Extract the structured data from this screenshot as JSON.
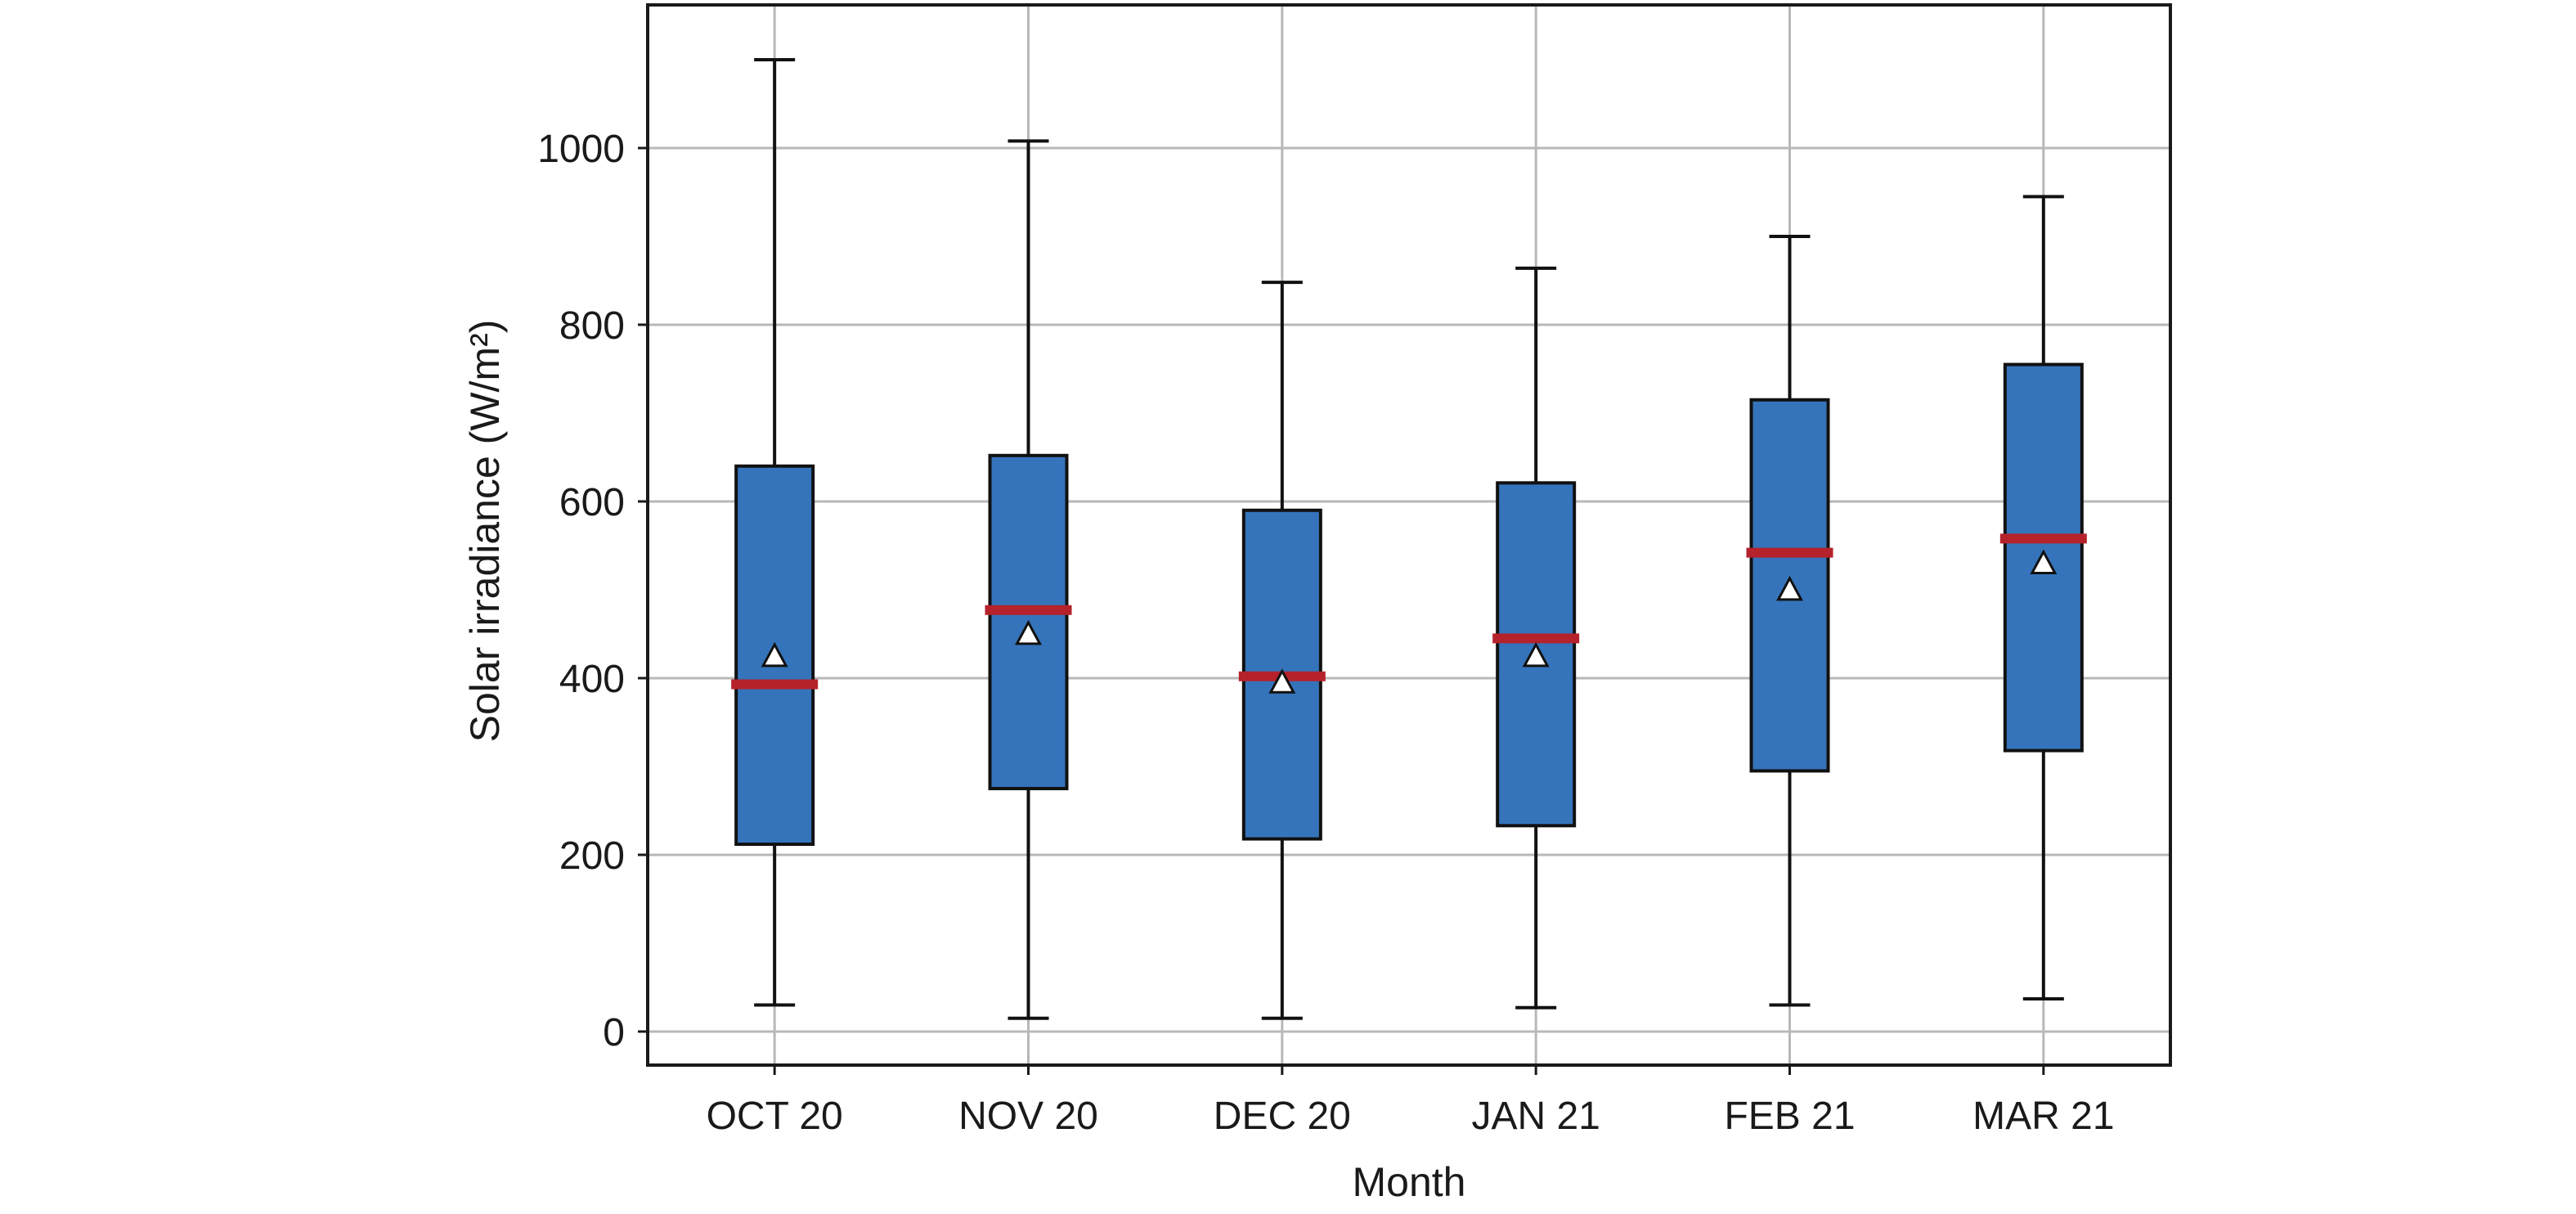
{
  "chart_data": {
    "type": "box",
    "categories": [
      "OCT 20",
      "NOV 20",
      "DEC 20",
      "JAN 21",
      "FEB 21",
      "MAR 21"
    ],
    "boxes": [
      {
        "whisker_low": 30,
        "q1": 212,
        "median": 393,
        "q3": 640,
        "whisker_high": 1100,
        "mean": 425
      },
      {
        "whisker_low": 15,
        "q1": 275,
        "median": 477,
        "q3": 652,
        "whisker_high": 1008,
        "mean": 450
      },
      {
        "whisker_low": 15,
        "q1": 218,
        "median": 402,
        "q3": 590,
        "whisker_high": 848,
        "mean": 395
      },
      {
        "whisker_low": 27,
        "q1": 233,
        "median": 445,
        "q3": 621,
        "whisker_high": 864,
        "mean": 425
      },
      {
        "whisker_low": 30,
        "q1": 295,
        "median": 542,
        "q3": 715,
        "whisker_high": 900,
        "mean": 500
      },
      {
        "whisker_low": 37,
        "q1": 318,
        "median": 558,
        "q3": 755,
        "whisker_high": 945,
        "mean": 530
      }
    ],
    "xlabel": "Month",
    "ylabel": "Solar irradiance (W/m²)",
    "yticks": [
      0,
      200,
      400,
      600,
      800,
      1000
    ],
    "ylim": [
      -38,
      1162
    ],
    "grid": true,
    "colors": {
      "box": "#3574bb",
      "median": "#b5222b",
      "mean_marker": "#ffffff"
    }
  }
}
